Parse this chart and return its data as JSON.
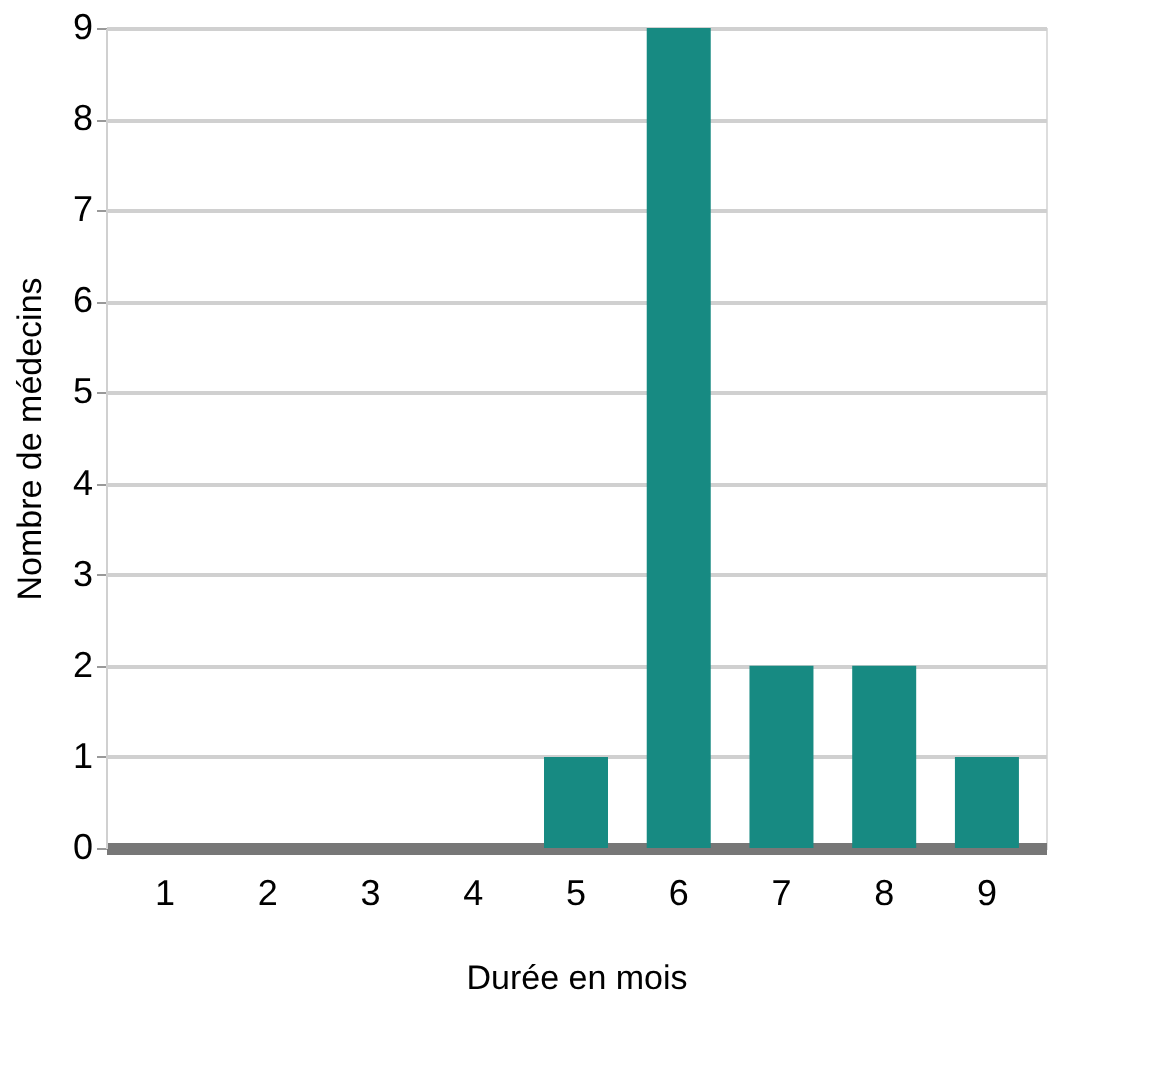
{
  "chart_data": {
    "type": "bar",
    "xlabel": "Durée en mois",
    "ylabel": "Nombre de médecins",
    "categories": [
      "1",
      "2",
      "3",
      "4",
      "5",
      "6",
      "7",
      "8",
      "9"
    ],
    "values": [
      0,
      0,
      0,
      0,
      1,
      9,
      2,
      2,
      1
    ],
    "color": "#178a82",
    "ylim": [
      0,
      9
    ],
    "yticks": [
      0,
      1,
      2,
      3,
      4,
      5,
      6,
      7,
      8,
      9
    ],
    "grid": "y"
  }
}
